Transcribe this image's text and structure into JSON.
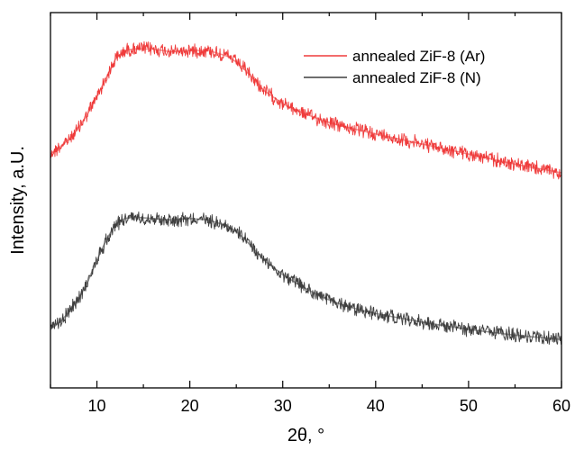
{
  "chart_data": {
    "type": "line",
    "xlabel": "2θ, °",
    "ylabel": "Intensity, a.U.",
    "xlim": [
      5,
      60
    ],
    "xticks": [
      10,
      20,
      30,
      40,
      50,
      60
    ],
    "xtick_labels": [
      "10",
      "20",
      "30",
      "40",
      "50",
      "60"
    ],
    "y_ticks_shown": false,
    "grid": false,
    "legend_position": "top-right",
    "series": [
      {
        "name": "annealed ZiF-8 (Ar)",
        "color": "#ef3b3b",
        "x": [
          5,
          6,
          7,
          8,
          9,
          10,
          11,
          12,
          13,
          14,
          16,
          18,
          20,
          22,
          24,
          25,
          26,
          27,
          28,
          30,
          32,
          34,
          36,
          38,
          40,
          45,
          50,
          55,
          60
        ],
        "y": [
          0.18,
          0.23,
          0.28,
          0.36,
          0.46,
          0.58,
          0.71,
          0.84,
          0.9,
          0.91,
          0.91,
          0.89,
          0.9,
          0.9,
          0.86,
          0.82,
          0.76,
          0.69,
          0.62,
          0.53,
          0.47,
          0.42,
          0.38,
          0.35,
          0.32,
          0.25,
          0.18,
          0.11,
          0.05
        ]
      },
      {
        "name": "annealed ZiF-8 (N)",
        "color": "#3f3f3f",
        "x": [
          5,
          6,
          7,
          8,
          9,
          10,
          11,
          12,
          13,
          14,
          16,
          18,
          20,
          22,
          24,
          25,
          26,
          27,
          28,
          30,
          32,
          34,
          36,
          38,
          40,
          45,
          50,
          55,
          60
        ],
        "y": [
          0.1,
          0.15,
          0.22,
          0.31,
          0.43,
          0.58,
          0.72,
          0.83,
          0.87,
          0.88,
          0.87,
          0.86,
          0.87,
          0.86,
          0.82,
          0.78,
          0.72,
          0.65,
          0.58,
          0.48,
          0.4,
          0.33,
          0.28,
          0.24,
          0.21,
          0.15,
          0.1,
          0.06,
          0.03
        ]
      }
    ]
  }
}
